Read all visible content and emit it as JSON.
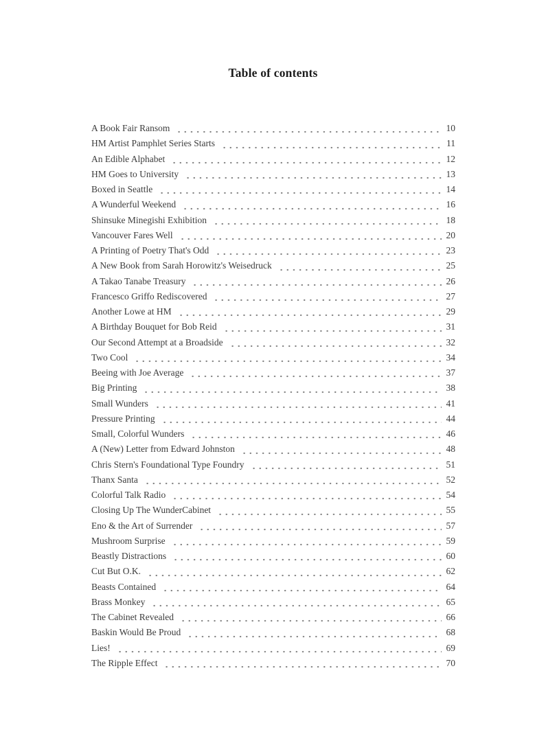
{
  "page": {
    "title": "Table of contents",
    "background_color": "#ffffff",
    "text_color": "#3c3c3c",
    "leader_dot_color": "#818181"
  },
  "entries": [
    {
      "title": "A Book Fair Ransom",
      "page": "10"
    },
    {
      "title": "HM Artist Pamphlet Series Starts",
      "page": "11"
    },
    {
      "title": "An Edible Alphabet",
      "page": "12"
    },
    {
      "title": "HM Goes to University",
      "page": "13"
    },
    {
      "title": "Boxed in Seattle",
      "page": "14"
    },
    {
      "title": "A Wunderful Weekend",
      "page": "16"
    },
    {
      "title": "Shinsuke Minegishi Exhibition",
      "page": "18"
    },
    {
      "title": "Vancouver Fares Well",
      "page": "20"
    },
    {
      "title": "A Printing of Poetry That's Odd",
      "page": "23"
    },
    {
      "title": "A New Book from Sarah Horowitz's Weisedruck",
      "page": "25"
    },
    {
      "title": "A Takao Tanabe Treasury",
      "page": "26"
    },
    {
      "title": "Francesco Griffo Rediscovered",
      "page": "27"
    },
    {
      "title": "Another Lowe at HM",
      "page": "29"
    },
    {
      "title": "A Birthday Bouquet for Bob Reid",
      "page": "31"
    },
    {
      "title": "Our Second Attempt at a Broadside",
      "page": "32"
    },
    {
      "title": "Two Cool",
      "page": "34"
    },
    {
      "title": "Beeing with Joe Average",
      "page": "37"
    },
    {
      "title": "Big Printing",
      "page": "38"
    },
    {
      "title": "Small Wunders",
      "page": "41"
    },
    {
      "title": "Pressure Printing",
      "page": "44"
    },
    {
      "title": "Small, Colorful Wunders",
      "page": "46"
    },
    {
      "title": "A (New) Letter from Edward Johnston",
      "page": "48"
    },
    {
      "title": "Chris Stern's Foundational Type Foundry",
      "page": "51"
    },
    {
      "title": "Thanx Santa",
      "page": "52"
    },
    {
      "title": "Colorful Talk Radio",
      "page": "54"
    },
    {
      "title": "Closing Up The WunderCabinet",
      "page": "55"
    },
    {
      "title": "Eno & the Art of Surrender",
      "page": "57"
    },
    {
      "title": "Mushroom Surprise",
      "page": "59"
    },
    {
      "title": "Beastly Distractions",
      "page": "60"
    },
    {
      "title": "Cut But O.K.",
      "page": "62"
    },
    {
      "title": "Beasts Contained",
      "page": "64"
    },
    {
      "title": "Brass Monkey",
      "page": "65"
    },
    {
      "title": "The Cabinet Revealed",
      "page": "66"
    },
    {
      "title": "Baskin Would Be Proud",
      "page": "68"
    },
    {
      "title": "Lies!",
      "page": "69"
    },
    {
      "title": "The Ripple Effect",
      "page": "70"
    }
  ]
}
